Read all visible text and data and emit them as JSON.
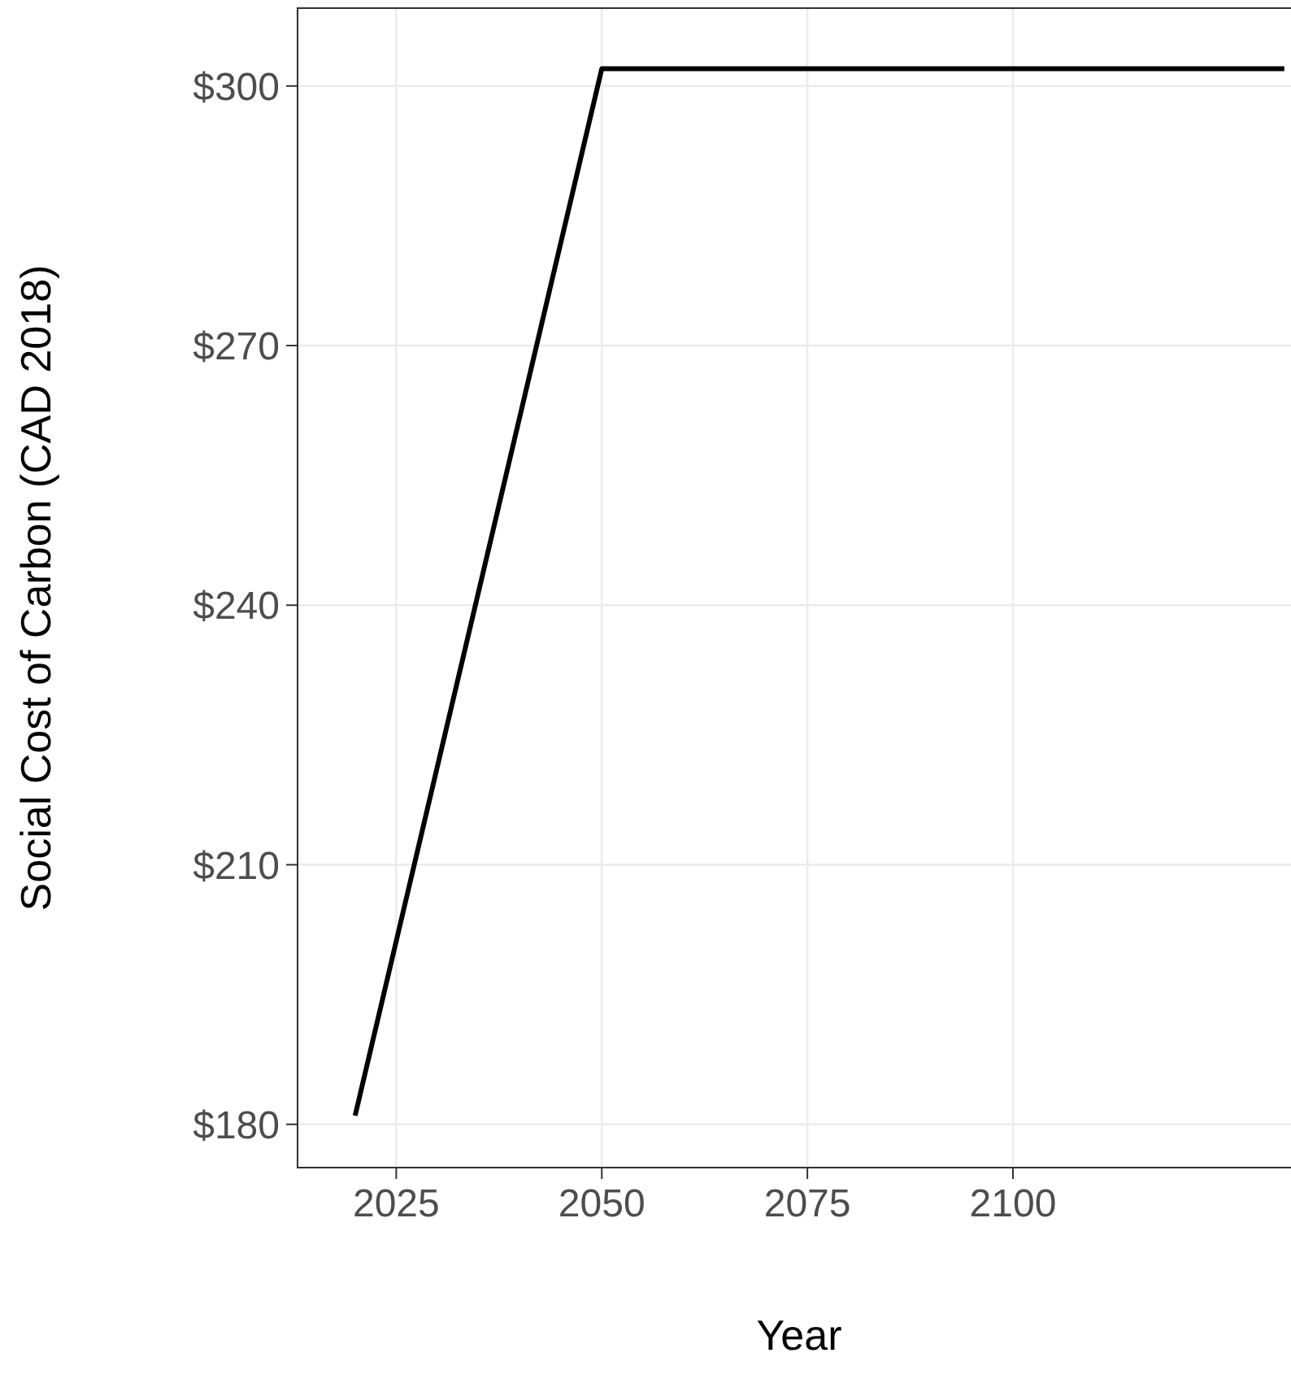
{
  "chart_data": {
    "type": "line",
    "xlabel": "Year",
    "ylabel": "Social Cost of Carbon (CAD 2018)",
    "x": [
      2020,
      2050,
      2133
    ],
    "series": [
      {
        "color": "#000000",
        "values": [
          181,
          302,
          302
        ]
      }
    ],
    "xlim": [
      2013,
      2135
    ],
    "xticks": [
      2025,
      2050,
      2075,
      2100
    ],
    "ylim": [
      175,
      309
    ],
    "yticks": [
      {
        "value": 180,
        "label": "$180"
      },
      {
        "value": 210,
        "label": "$210"
      },
      {
        "value": 240,
        "label": "$240"
      },
      {
        "value": 270,
        "label": "$270"
      },
      {
        "value": 300,
        "label": "$300"
      }
    ],
    "grid": true,
    "marker": "none",
    "line_style": "solid"
  }
}
